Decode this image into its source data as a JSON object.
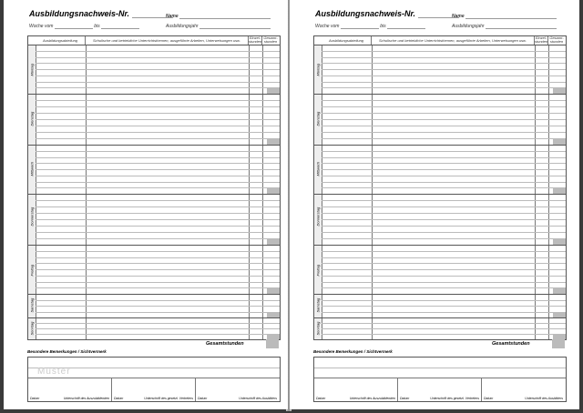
{
  "header": {
    "title": "Ausbildungsnachweis-Nr.",
    "week_from": "Woche vom",
    "to": "bis",
    "name": "Name",
    "year": "Ausbildungsjahr"
  },
  "table": {
    "col_department": "Ausbildungsabteilung",
    "col_description": "Schulische und betriebliche Unterrichtsthemen, ausgeführte Arbeiten, Unterweisungen usw.",
    "col_hours": "Einzel-stunden",
    "col_total": "Gesamt-stunden",
    "days": [
      "Montag",
      "Dienstag",
      "Mittwoch",
      "Donnerstag",
      "Freitag",
      "Samstag",
      "Sonntag"
    ]
  },
  "total_label": "Gesamtstunden",
  "remarks_label": "Besondere Bemerkungen / Sichtvermerk",
  "watermark": "Muster",
  "signatures": [
    {
      "date": "Datum",
      "label": "Unterschrift des Auszubildenden"
    },
    {
      "date": "Datum",
      "label": "Unterschrift des gesetzl. Vertreters"
    },
    {
      "date": "Datum",
      "label": "Unterschrift des Ausbilders"
    }
  ]
}
